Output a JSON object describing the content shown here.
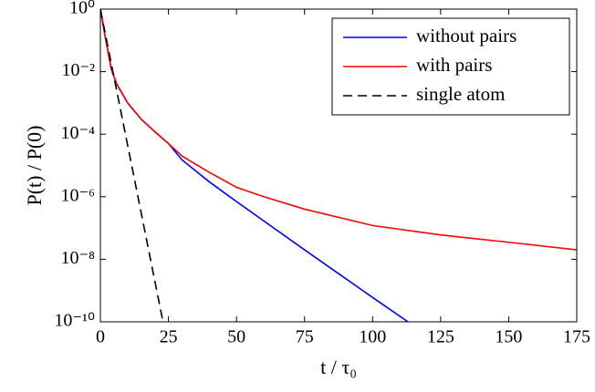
{
  "chart_data": {
    "type": "line",
    "x_label": "t / τ₀",
    "y_label": "P(t) / P(0)",
    "log_y": true,
    "legend": "upper right",
    "xlim": [
      0,
      175
    ],
    "xticks": [
      0,
      25,
      50,
      75,
      100,
      125,
      150,
      175
    ],
    "ylim": [
      1e-10,
      1
    ],
    "yticks": [
      {
        "value": 1e-10,
        "label": "10⁻¹⁰"
      },
      {
        "value": 1e-08,
        "label": "10⁻⁸"
      },
      {
        "value": 1e-06,
        "label": "10⁻⁶"
      },
      {
        "value": 0.0001,
        "label": "10⁻⁴"
      },
      {
        "value": 0.01,
        "label": "10⁻²"
      },
      {
        "value": 1,
        "label": "10⁰"
      }
    ],
    "series": [
      {
        "name": "without pairs",
        "color": "#0000ff",
        "dash": false,
        "x": [
          0,
          2,
          4,
          6,
          8,
          10,
          15,
          20,
          25,
          30,
          40,
          50,
          75,
          100,
          113
        ],
        "values": [
          1,
          0.1,
          0.012,
          0.004,
          0.002,
          0.001,
          0.0003,
          0.00012,
          5e-05,
          1.5e-05,
          3e-06,
          7e-07,
          2e-08,
          6e-10,
          1e-10
        ]
      },
      {
        "name": "with pairs",
        "color": "#ff0000",
        "dash": false,
        "x": [
          0,
          2,
          4,
          6,
          8,
          10,
          15,
          20,
          25,
          30,
          40,
          50,
          60,
          75,
          100,
          125,
          150,
          175
        ],
        "values": [
          1,
          0.1,
          0.012,
          0.004,
          0.002,
          0.001,
          0.0003,
          0.00012,
          5e-05,
          2e-05,
          6e-06,
          2e-06,
          1e-06,
          4e-07,
          1.2e-07,
          6e-08,
          3.5e-08,
          2e-08
        ]
      },
      {
        "name": "single atom",
        "color": "#000000",
        "dash": true,
        "x": [
          0,
          23
        ],
        "values": [
          1,
          1e-10
        ]
      }
    ]
  }
}
